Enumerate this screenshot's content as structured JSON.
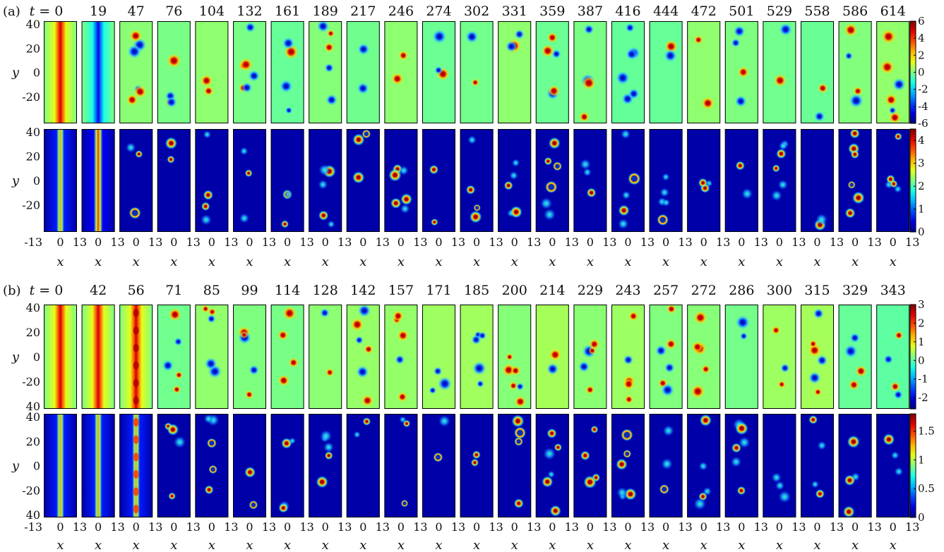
{
  "chart_data": [
    {
      "type": "heatmap",
      "panel_label": "(a)",
      "time_prefix": "t = ",
      "times": [
        "0",
        "19",
        "47",
        "76",
        "104",
        "132",
        "161",
        "189",
        "217",
        "246",
        "274",
        "302",
        "331",
        "359",
        "387",
        "416",
        "444",
        "472",
        "501",
        "529",
        "558",
        "586",
        "614"
      ],
      "xlabel": "x",
      "ylabel": "y",
      "x_tick_labels": [
        "-13",
        "0",
        "13"
      ],
      "xlim": [
        -13,
        13
      ],
      "ylim": [
        -40,
        40
      ],
      "y_tick_labels": [
        "40",
        "20",
        "0",
        "-20"
      ],
      "rows": [
        {
          "colorbar_ticks": [
            "6",
            "4",
            "2",
            "0",
            "-2",
            "-4",
            "-6"
          ],
          "colorbar_range": [
            -6,
            6
          ],
          "colormap": "jet"
        },
        {
          "colorbar_ticks": [
            "4",
            "3",
            "2",
            "1",
            "0"
          ],
          "colorbar_range": [
            0,
            4.5
          ],
          "colormap": "jet"
        }
      ]
    },
    {
      "type": "heatmap",
      "panel_label": "(b)",
      "time_prefix": "t = ",
      "times": [
        "0",
        "42",
        "56",
        "71",
        "85",
        "99",
        "114",
        "128",
        "142",
        "157",
        "171",
        "185",
        "200",
        "214",
        "229",
        "243",
        "257",
        "272",
        "286",
        "300",
        "315",
        "329",
        "343"
      ],
      "xlabel": "x",
      "ylabel": "y",
      "x_tick_labels": [
        "-13",
        "0",
        "13"
      ],
      "xlim": [
        -13,
        13
      ],
      "ylim": [
        -40,
        40
      ],
      "y_tick_labels": [
        "40",
        "20",
        "0",
        "-20",
        "40"
      ],
      "rows": [
        {
          "colorbar_ticks": [
            "3",
            "2",
            "1",
            "0",
            "-1",
            "-2"
          ],
          "colorbar_range": [
            -2.6,
            3
          ],
          "colormap": "jet"
        },
        {
          "colorbar_ticks": [
            "1.5",
            "1",
            "0.5",
            "0"
          ],
          "colorbar_range": [
            0,
            1.8
          ],
          "colormap": "jet"
        }
      ]
    }
  ]
}
